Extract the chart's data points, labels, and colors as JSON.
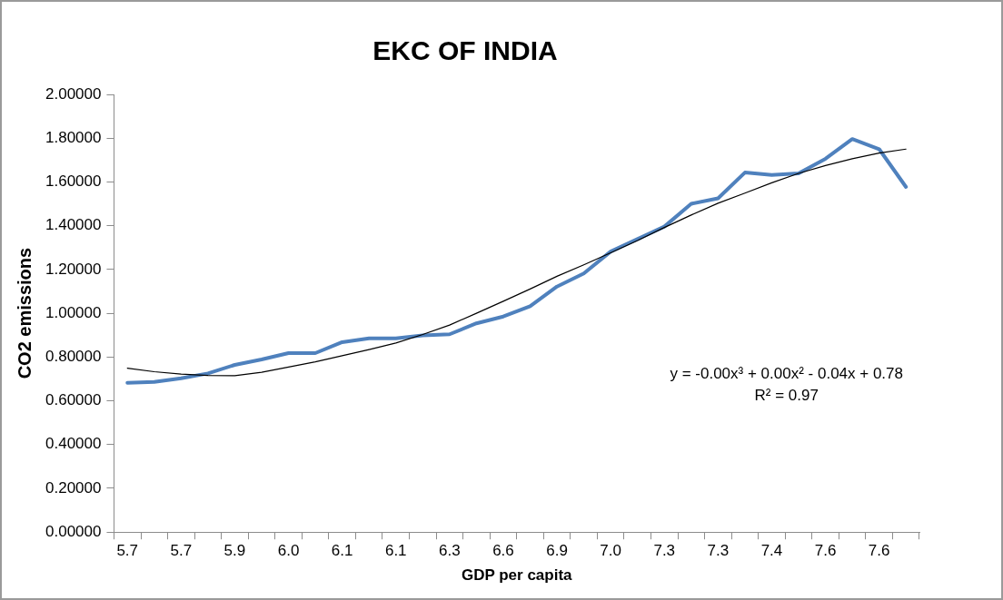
{
  "chart_data": {
    "type": "line",
    "title": "EKC OF INDIA",
    "xlabel": "GDP per capita",
    "ylabel": "CO2 emissions",
    "categories": [
      "5.7",
      null,
      "5.7",
      null,
      "5.9",
      null,
      "6.0",
      null,
      "6.1",
      null,
      "6.1",
      null,
      "6.3",
      null,
      "6.6",
      null,
      "6.9",
      null,
      "7.0",
      null,
      "7.3",
      null,
      "7.3",
      null,
      "7.4",
      null,
      "7.6",
      null,
      "7.6",
      null
    ],
    "series": [
      {
        "color": "#4f81bd",
        "values": [
          0.682,
          0.686,
          0.703,
          0.725,
          0.764,
          0.789,
          0.818,
          0.818,
          0.868,
          0.885,
          0.885,
          0.899,
          0.904,
          0.954,
          0.985,
          1.032,
          1.122,
          1.182,
          1.282,
          1.339,
          1.396,
          1.5,
          1.525,
          1.643,
          1.632,
          1.639,
          1.706,
          1.796,
          1.75,
          1.577
        ]
      },
      {
        "type": "line",
        "color": "#000000",
        "values": [
          0.749,
          0.733,
          0.722,
          0.716,
          0.715,
          0.73,
          0.754,
          0.778,
          0.806,
          0.834,
          0.864,
          0.903,
          0.946,
          1.0,
          1.055,
          1.111,
          1.169,
          1.221,
          1.276,
          1.332,
          1.392,
          1.449,
          1.503,
          1.549,
          1.596,
          1.639,
          1.675,
          1.706,
          1.732,
          1.75
        ]
      }
    ],
    "ylim": [
      0,
      2
    ],
    "yticks": [
      {
        "value": 0,
        "label": "0.00000"
      },
      {
        "value": 0.2,
        "label": "0.20000"
      },
      {
        "value": 0.4,
        "label": "0.40000"
      },
      {
        "value": 0.6,
        "label": "0.60000"
      },
      {
        "value": 0.8,
        "label": "0.80000"
      },
      {
        "value": 1,
        "label": "1.00000"
      },
      {
        "value": 1.2,
        "label": "1.20000"
      },
      {
        "value": 1.4,
        "label": "1.40000"
      },
      {
        "value": 1.6,
        "label": "1.60000"
      },
      {
        "value": 1.8,
        "label": "1.80000"
      },
      {
        "value": 2,
        "label": "2.00000"
      }
    ],
    "annotations": [
      "y = -0.00x³ + 0.00x² - 0.04x + 0.78",
      "R² = 0.97"
    ],
    "grid": false,
    "legend": false,
    "marker": "none",
    "line_style": "solid"
  }
}
